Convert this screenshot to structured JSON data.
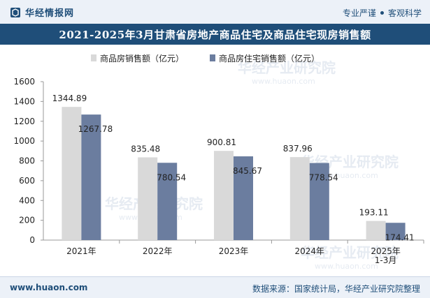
{
  "header": {
    "brand": "华经情报网",
    "slogan_left": "专业严谨",
    "slogan_right": "客观科学"
  },
  "title": "2021-2025年3月甘肃省房地产商品住宅及商品住宅现房销售额",
  "footer": {
    "site": "www.huaon.com",
    "source": "数据来源：国家统计局，华经产业研究院整理"
  },
  "watermark": {
    "cn": "华经产业研究院",
    "en": "www.huaon.com"
  },
  "colors": {
    "series1": "#d9d9d9",
    "series2": "#6b7d9f",
    "brand": "#1f4e79"
  },
  "chart_data": {
    "type": "bar",
    "title": "2021-2025年3月甘肃省房地产商品住宅及商品住宅现房销售额",
    "categories": [
      "2021年",
      "2022年",
      "2023年",
      "2024年",
      "2025年 1-3月"
    ],
    "series": [
      {
        "name": "商品房销售额（亿元）",
        "values": [
          1344.89,
          835.48,
          900.81,
          837.96,
          193.11
        ]
      },
      {
        "name": "商品房住宅销售额（亿元）",
        "values": [
          1267.78,
          780.54,
          845.67,
          778.54,
          174.41
        ]
      }
    ],
    "yticks": [
      "0",
      "200",
      "400",
      "600",
      "800",
      "1000",
      "1200",
      "1400",
      "1600"
    ],
    "ylim": [
      0,
      1600
    ],
    "legend_position": "top-center",
    "grid": false,
    "xlabel": "",
    "ylabel": ""
  }
}
